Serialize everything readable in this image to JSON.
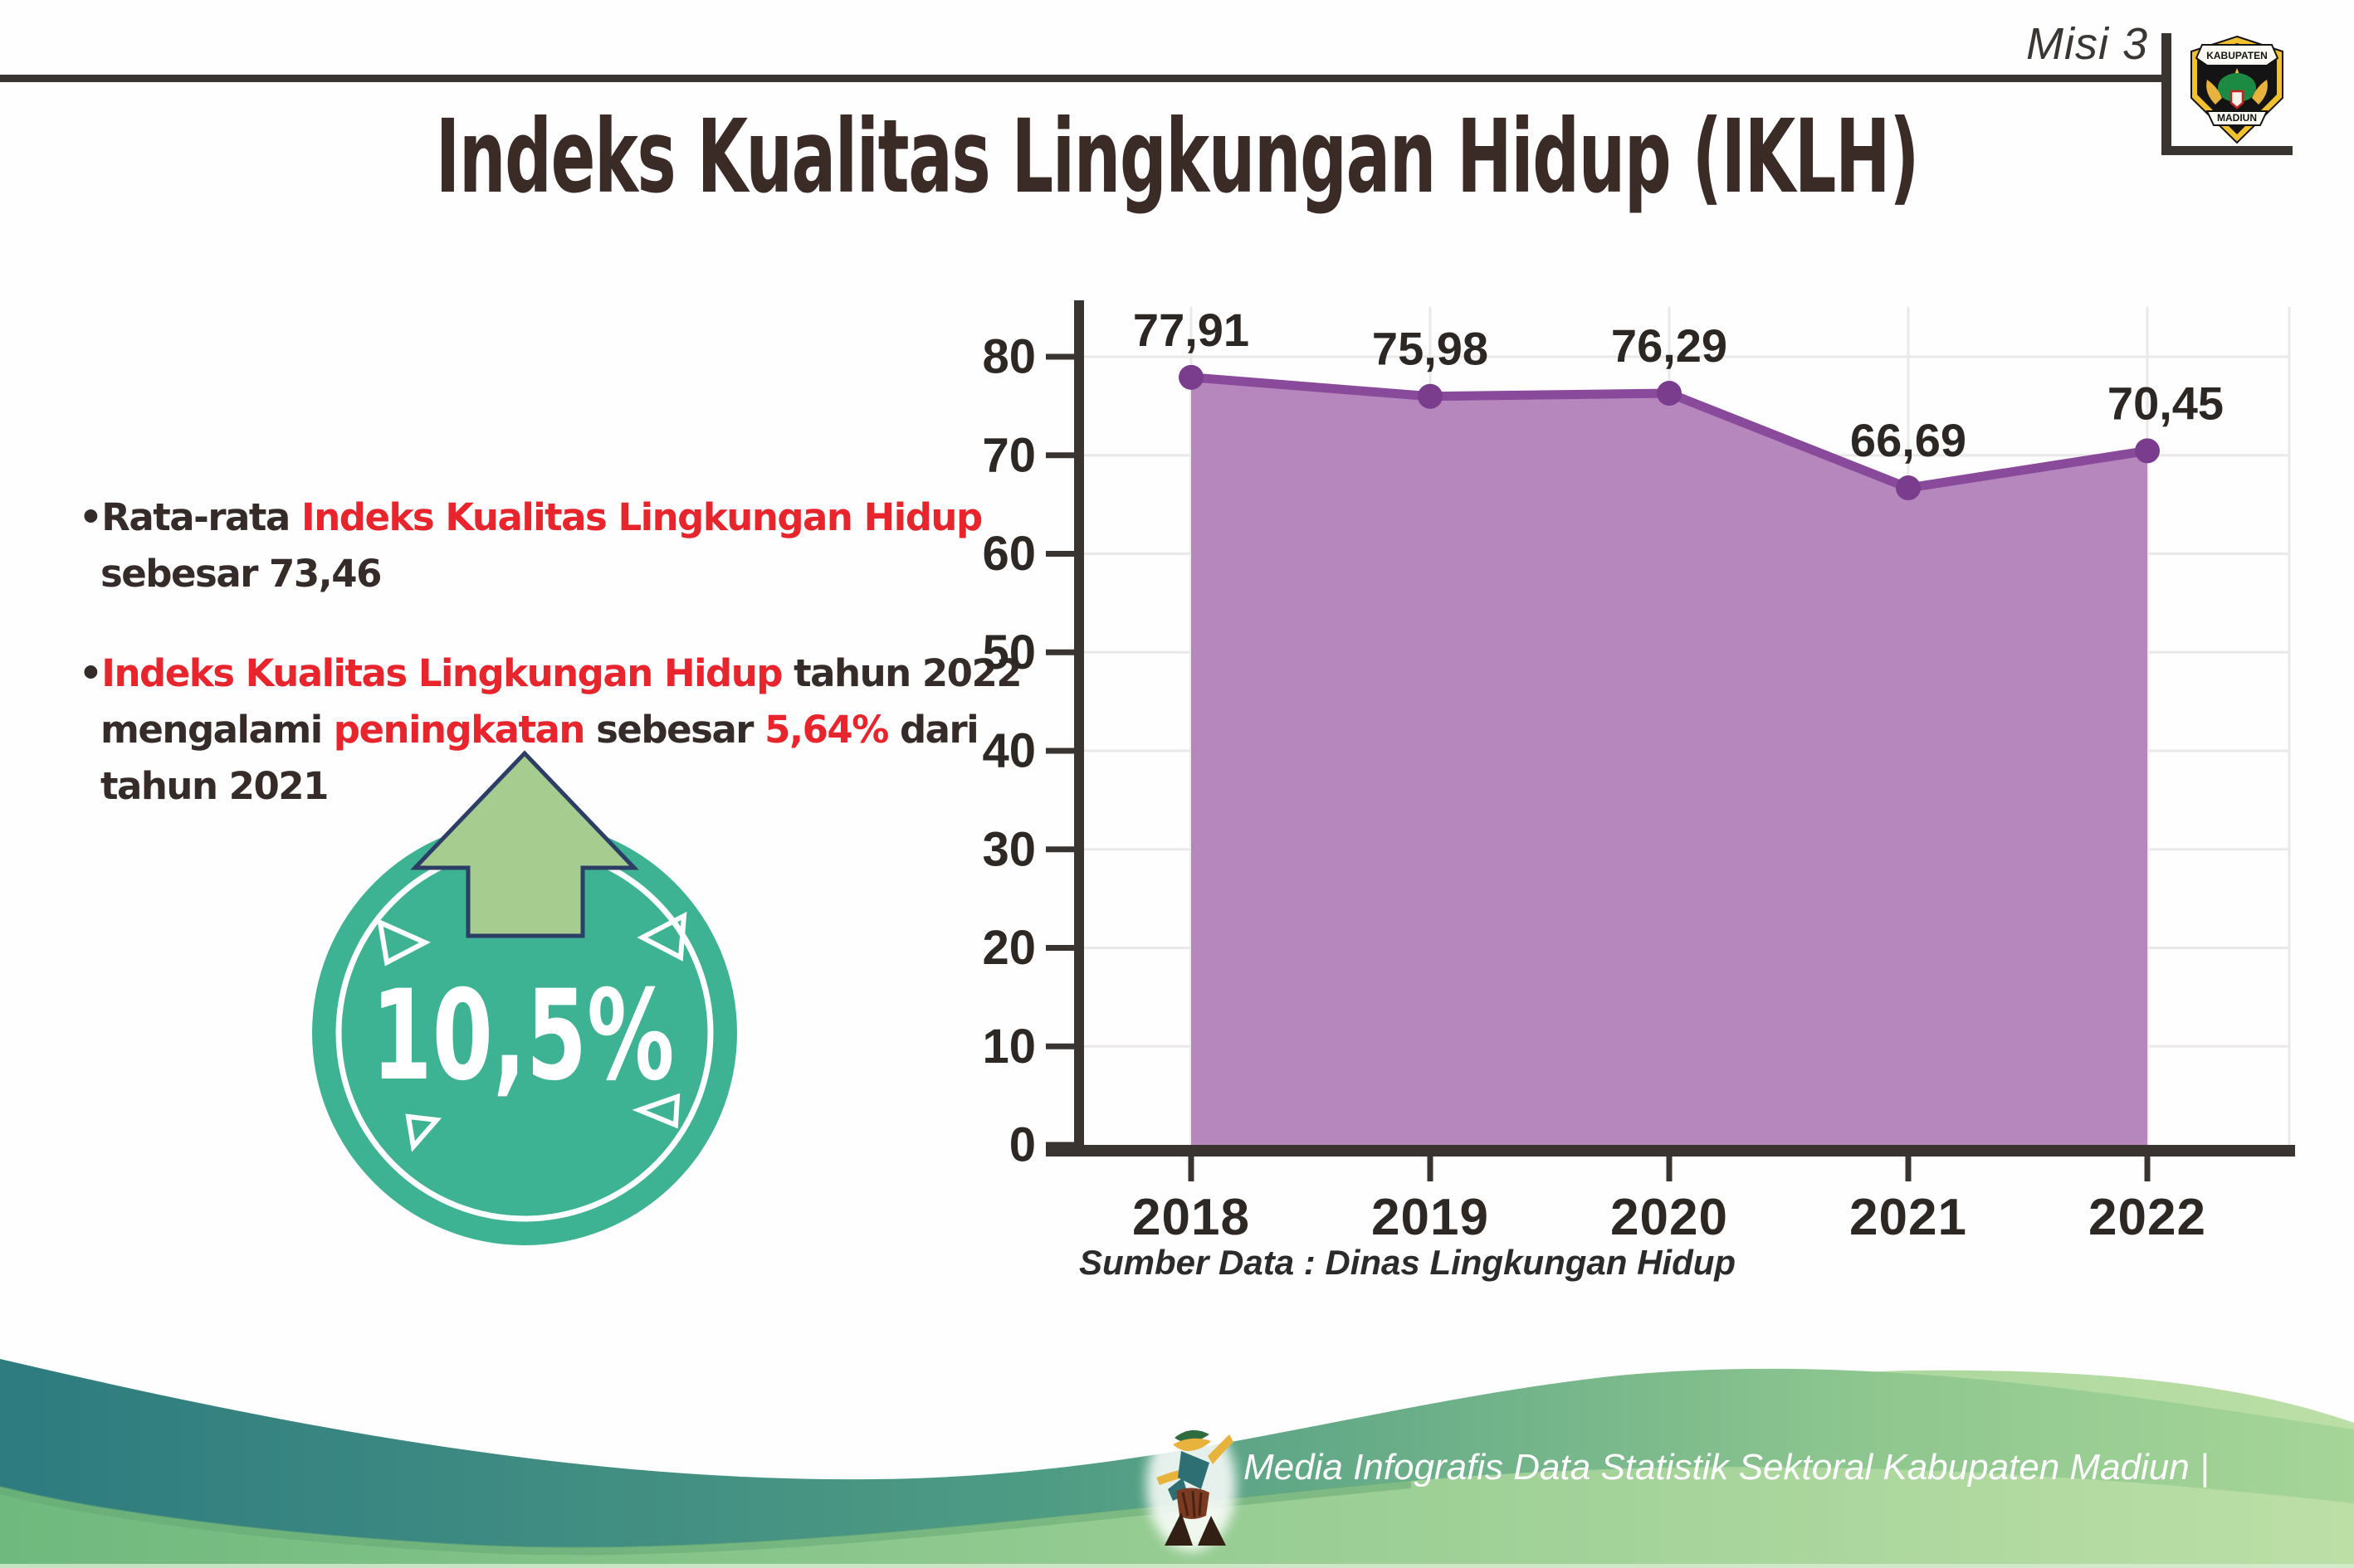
{
  "header": {
    "misi": "Misi 3",
    "logo": {
      "top": "KABUPATEN",
      "bottom": "MADIUN"
    }
  },
  "title": "Indeks Kualitas Lingkungan Hidup (IKLH)",
  "bullets": [
    {
      "lines": [
        [
          {
            "t": "•",
            "red": false
          },
          {
            "t": "Rata-rata ",
            "red": false
          },
          {
            "t": "Indeks Kualitas Lingkungan Hidup",
            "red": true
          }
        ],
        [
          {
            "t": "sebesar 73,46",
            "red": false
          }
        ]
      ]
    },
    {
      "lines": [
        [
          {
            "t": "•",
            "red": false
          },
          {
            "t": "Indeks Kualitas Lingkungan Hidup",
            "red": true
          },
          {
            "t": " tahun 2022",
            "red": false
          }
        ],
        [
          {
            "t": "mengalami ",
            "red": false
          },
          {
            "t": "peningkatan",
            "red": true
          },
          {
            "t": " sebesar ",
            "red": false
          },
          {
            "t": "5,64%",
            "red": true
          },
          {
            "t": " dari",
            "red": false
          }
        ],
        [
          {
            "t": "tahun 2021",
            "red": false
          }
        ]
      ]
    }
  ],
  "badge": {
    "value": "10,5%"
  },
  "chart_data": {
    "type": "area",
    "categories": [
      "2018",
      "2019",
      "2020",
      "2021",
      "2022"
    ],
    "values": [
      77.91,
      75.98,
      76.29,
      66.69,
      70.45
    ],
    "value_labels": [
      "77,91",
      "75,98",
      "76,29",
      "66,69",
      "70,45"
    ],
    "title": "",
    "xlabel": "",
    "ylabel": "",
    "ylim": [
      0,
      85
    ],
    "yticks": [
      0,
      10,
      20,
      30,
      40,
      50,
      60,
      70,
      80
    ],
    "grid": true,
    "legend": "none",
    "fill_color": "#b687bc",
    "line_color": "#8a4a9b",
    "dot_color": "#7a3d8e"
  },
  "source": "Sumber Data : Dinas Lingkungan Hidup",
  "footer": {
    "caption": "Media Infografis Data Statistik Sektoral Kabupaten Madiun |"
  },
  "colors": {
    "accent_red": "#e8242c",
    "badge_teal": "#3db394",
    "arrow_green": "#a6cd8f",
    "arrow_outline_navy": "#2c3d66",
    "chart_fill": "#b687bc",
    "chart_line": "#8a4a9b",
    "axis_dark": "#3a3430",
    "footer_teal": "#2e7b80",
    "footer_green": "#a6d598"
  }
}
